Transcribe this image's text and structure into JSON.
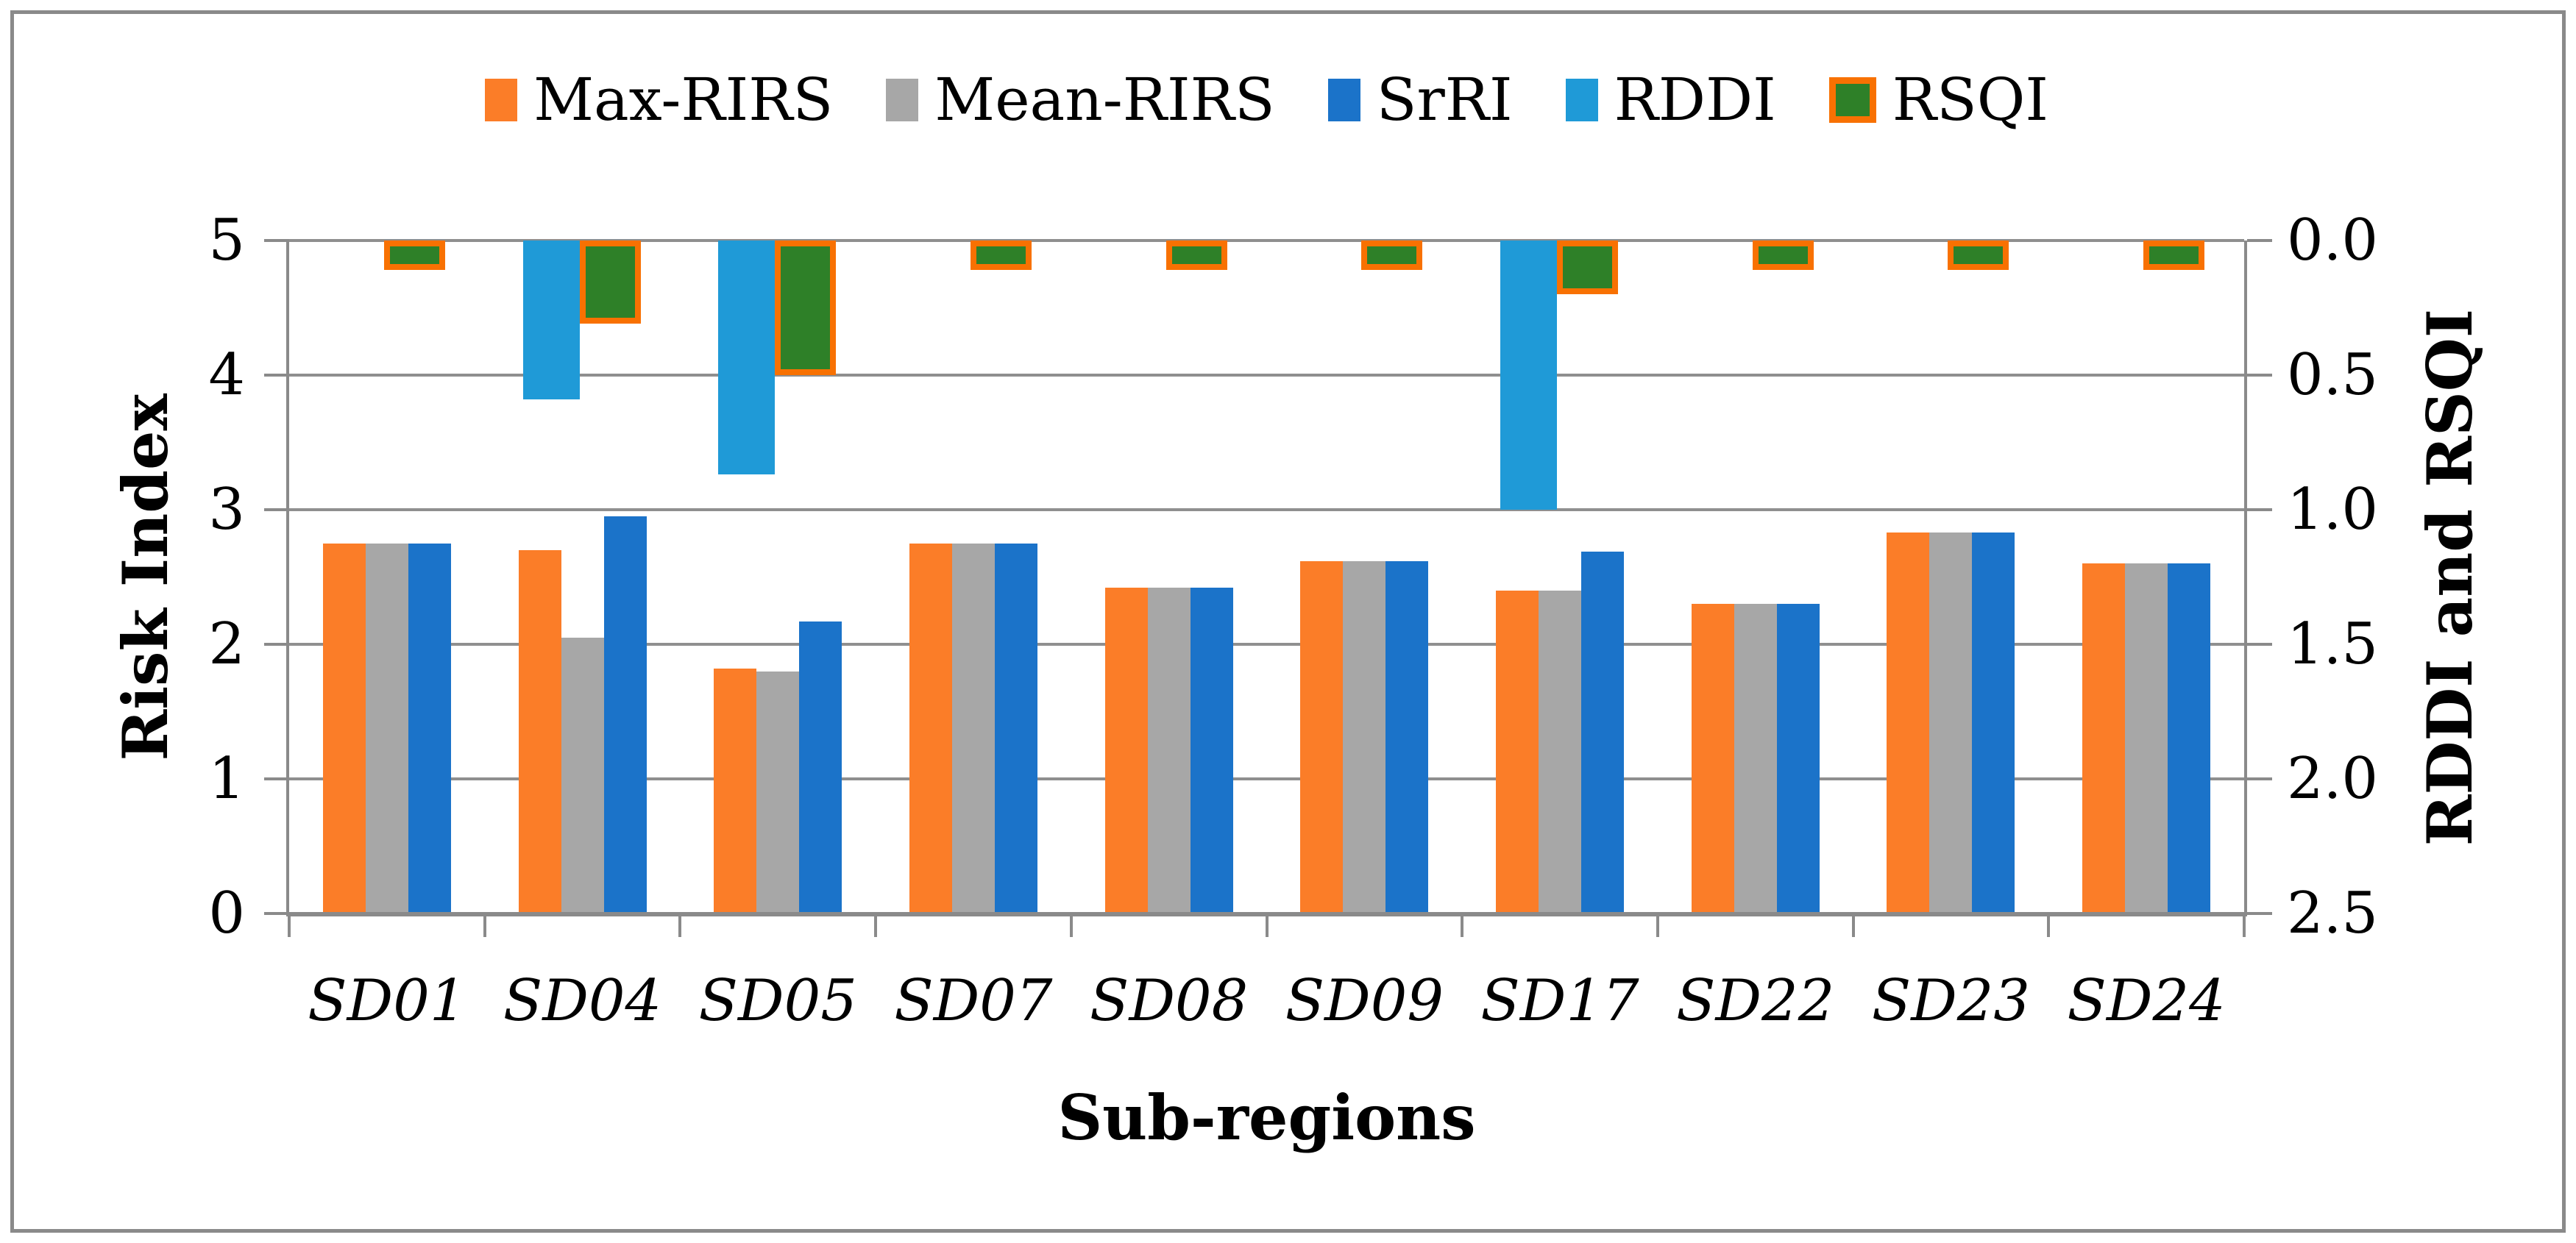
{
  "figure": {
    "background": "#FFFFFF",
    "border_color": "#8A8A8A"
  },
  "legend": {
    "items": [
      {
        "label": "Max-RIRS",
        "color": "#FB7D28"
      },
      {
        "label": "Mean-RIRS",
        "color": "#A7A7A7"
      },
      {
        "label": "SrRI",
        "color": "#1B73C9"
      },
      {
        "label": "RDDI",
        "color": "#1F9AD7"
      },
      {
        "label": "RSQI",
        "color": "#2E8028",
        "border_color": "#F87102"
      }
    ]
  },
  "chart_data": {
    "type": "bar",
    "title": "",
    "categories": [
      "SD01",
      "SD04",
      "SD05",
      "SD07",
      "SD08",
      "SD09",
      "SD17",
      "SD22",
      "SD23",
      "SD24"
    ],
    "series": [
      {
        "name": "Max-RIRS",
        "axis": "left",
        "color": "#FB7D28",
        "values": [
          2.75,
          2.7,
          1.82,
          2.75,
          2.42,
          2.62,
          2.4,
          2.3,
          2.83,
          2.6
        ]
      },
      {
        "name": "Mean-RIRS",
        "axis": "left",
        "color": "#A7A7A7",
        "values": [
          2.75,
          2.05,
          1.8,
          2.75,
          2.42,
          2.62,
          2.4,
          2.3,
          2.83,
          2.6
        ]
      },
      {
        "name": "SrRI",
        "axis": "left",
        "color": "#1B73C9",
        "values": [
          2.75,
          2.95,
          2.17,
          2.75,
          2.42,
          2.62,
          2.69,
          2.3,
          2.83,
          2.6
        ]
      },
      {
        "name": "RDDI",
        "axis": "right",
        "color": "#1F9AD7",
        "values": [
          0,
          0.59,
          0.87,
          0,
          0,
          0,
          1.0,
          0,
          0,
          0
        ]
      },
      {
        "name": "RSQI",
        "axis": "right",
        "color": "#2E8028",
        "border_color": "#F87102",
        "values": [
          0.11,
          0.31,
          0.5,
          0.11,
          0.11,
          0.11,
          0.2,
          0.11,
          0.11,
          0.11
        ]
      }
    ],
    "left_axis": {
      "label": "Risk Index",
      "min": 0,
      "max": 5,
      "ticks": [
        "0",
        "1",
        "2",
        "3",
        "4",
        "5"
      ]
    },
    "right_axis": {
      "label": "RDDI and RSQI",
      "min": 0.0,
      "max": 2.5,
      "inverted": true,
      "ticks": [
        "0.0",
        "0.5",
        "1.0",
        "1.5",
        "2.0",
        "2.5"
      ]
    },
    "x_axis": {
      "label": "Sub-regions"
    },
    "grid": "horizontal",
    "gridline_color": "#8F8F8F",
    "legend_position": "top"
  }
}
